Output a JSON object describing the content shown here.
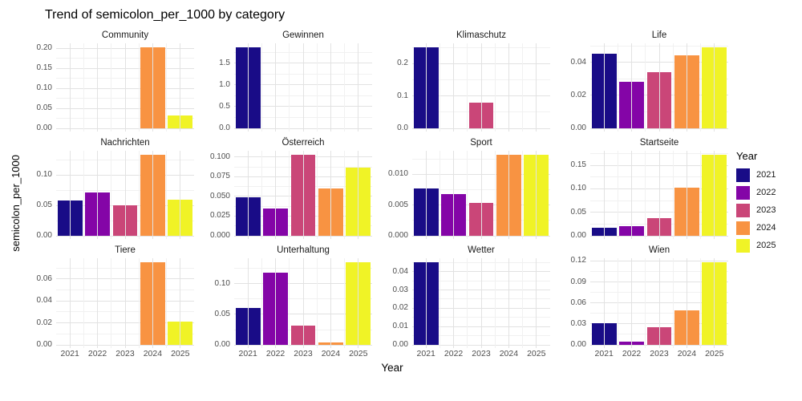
{
  "title": "Trend of semicolon_per_1000 by category",
  "axes": {
    "x_title": "Year",
    "y_title": "semicolon_per_1000"
  },
  "legend": {
    "title": "Year",
    "position": "right",
    "entries": [
      {
        "label": "2021",
        "color": "#190C87"
      },
      {
        "label": "2022",
        "color": "#8405A7"
      },
      {
        "label": "2023",
        "color": "#CA4678"
      },
      {
        "label": "2024",
        "color": "#F89342"
      },
      {
        "label": "2025",
        "color": "#F0F326"
      }
    ]
  },
  "chart_data": {
    "type": "bar",
    "title": "Trend of semicolon_per_1000 by category",
    "xlabel": "Year",
    "ylabel": "semicolon_per_1000",
    "categories": [
      "2021",
      "2022",
      "2023",
      "2024",
      "2025"
    ],
    "facet_layout": {
      "rows": 3,
      "cols": 4,
      "free_y": true
    },
    "grid": true,
    "legend_position": "right",
    "palette": {
      "2021": "#190C87",
      "2022": "#8405A7",
      "2023": "#CA4678",
      "2024": "#F89342",
      "2025": "#F0F326"
    },
    "panels": [
      {
        "name": "Community",
        "ticks": [
          "0.00",
          "0.05",
          "0.10",
          "0.15",
          "0.20"
        ],
        "ylim": [
          0,
          0.212
        ],
        "values": [
          null,
          null,
          null,
          0.202,
          0.032
        ]
      },
      {
        "name": "Gewinnen",
        "ticks": [
          "0.0",
          "0.5",
          "1.0",
          "1.5"
        ],
        "ylim": [
          0,
          1.96
        ],
        "values": [
          1.87,
          null,
          null,
          null,
          null
        ]
      },
      {
        "name": "Klimaschutz",
        "ticks": [
          "0.0",
          "0.1",
          "0.2"
        ],
        "ylim": [
          0,
          0.263
        ],
        "values": [
          0.25,
          null,
          0.08,
          null,
          null
        ]
      },
      {
        "name": "Life",
        "ticks": [
          "0.00",
          "0.02",
          "0.04"
        ],
        "ylim": [
          0,
          0.0515
        ],
        "values": [
          0.045,
          0.028,
          0.034,
          0.044,
          0.049
        ]
      },
      {
        "name": "Nachrichten",
        "ticks": [
          "0.00",
          "0.05",
          "0.10"
        ],
        "ylim": [
          0,
          0.14
        ],
        "values": [
          0.058,
          0.071,
          0.05,
          0.133,
          0.059
        ]
      },
      {
        "name": "Österreich",
        "ticks": [
          "0.000",
          "0.025",
          "0.050",
          "0.075",
          "0.100"
        ],
        "ylim": [
          0,
          0.108
        ],
        "values": [
          0.049,
          0.035,
          0.103,
          0.06,
          0.087
        ]
      },
      {
        "name": "Sport",
        "ticks": [
          "0.000",
          "0.005",
          "0.010"
        ],
        "ylim": [
          0,
          0.0138
        ],
        "values": [
          0.0077,
          0.0068,
          0.0053,
          0.0131,
          0.0131
        ]
      },
      {
        "name": "Startseite",
        "ticks": [
          "0.00",
          "0.05",
          "0.10",
          "0.15"
        ],
        "ylim": [
          0,
          0.181
        ],
        "values": [
          0.017,
          0.02,
          0.037,
          0.102,
          0.172
        ]
      },
      {
        "name": "Tiere",
        "ticks": [
          "0.00",
          "0.02",
          "0.04",
          "0.06"
        ],
        "ylim": [
          0,
          0.0788
        ],
        "values": [
          null,
          null,
          null,
          0.075,
          0.021
        ]
      },
      {
        "name": "Unterhaltung",
        "ticks": [
          "0.00",
          "0.05",
          "0.10"
        ],
        "ylim": [
          0,
          0.142
        ],
        "values": [
          0.061,
          0.118,
          0.031,
          0.004,
          0.135
        ]
      },
      {
        "name": "Wetter",
        "ticks": [
          "0.00",
          "0.01",
          "0.02",
          "0.03",
          "0.04"
        ],
        "ylim": [
          0,
          0.0473
        ],
        "values": [
          0.045,
          null,
          null,
          null,
          null
        ]
      },
      {
        "name": "Wien",
        "ticks": [
          "0.00",
          "0.03",
          "0.06",
          "0.09",
          "0.12"
        ],
        "ylim": [
          0,
          0.124
        ],
        "values": [
          0.031,
          0.005,
          0.025,
          0.049,
          0.118
        ]
      }
    ]
  }
}
